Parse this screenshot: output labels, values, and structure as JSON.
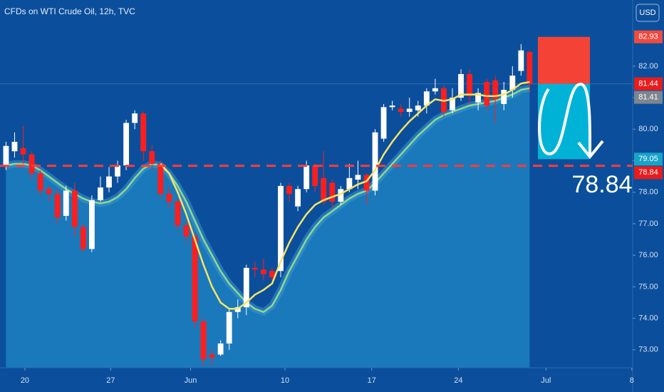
{
  "chart_data": {
    "type": "candlestick",
    "title": "CFDs on WTI Crude Oil, 12h, TVC",
    "currency": "USD",
    "open": [
      78.86,
      79.3,
      79.4,
      79.2,
      78.6,
      78.1,
      77.95,
      77.25,
      78.05,
      76.9,
      76.2,
      77.75,
      78.15,
      78.5,
      78.85,
      80.2,
      80.5,
      79.3,
      78.9,
      77.95,
      77.7,
      76.95,
      76.6,
      73.9,
      72.85,
      72.85,
      73.2,
      74.2,
      74.35,
      75.6,
      75.55,
      75.5,
      75.5,
      78.2,
      77.55,
      78.1,
      78.85,
      78.45,
      78.3,
      77.7,
      78.1,
      78.4,
      78.55,
      78.05,
      79.7,
      80.7,
      80.65,
      80.55,
      80.6,
      80.75,
      81.2,
      81.3,
      80.6,
      81.0,
      81.75,
      80.85,
      81.5,
      81.55,
      80.8,
      81.25,
      81.85,
      82.45
    ],
    "high": [
      79.6,
      79.9,
      80.1,
      79.3,
      78.7,
      78.2,
      78.1,
      78.2,
      78.3,
      77.0,
      77.9,
      78.5,
      78.8,
      79.0,
      80.3,
      80.6,
      80.55,
      79.5,
      79.0,
      78.2,
      77.8,
      77.1,
      76.7,
      74.0,
      73.0,
      73.3,
      74.3,
      74.6,
      75.7,
      75.8,
      75.9,
      75.6,
      78.3,
      78.3,
      78.2,
      79.0,
      78.9,
      79.3,
      78.4,
      78.2,
      78.9,
      79.0,
      78.6,
      80.0,
      80.8,
      80.9,
      80.8,
      81.0,
      80.9,
      81.3,
      81.6,
      81.4,
      81.3,
      81.9,
      81.9,
      81.3,
      81.6,
      81.7,
      81.5,
      82.0,
      82.7,
      82.5
    ],
    "low": [
      78.7,
      79.1,
      78.9,
      78.4,
      77.9,
      77.7,
      77.0,
      77.1,
      76.6,
      76.1,
      76.1,
      77.7,
      78.0,
      78.3,
      78.7,
      80.0,
      79.0,
      78.7,
      77.8,
      77.5,
      76.8,
      76.4,
      73.7,
      72.5,
      72.5,
      72.8,
      73.0,
      74.0,
      74.1,
      75.3,
      75.2,
      75.2,
      75.3,
      77.7,
      77.4,
      78.0,
      78.0,
      77.6,
      77.5,
      77.6,
      78.0,
      78.1,
      77.6,
      77.9,
      79.6,
      80.6,
      80.4,
      80.4,
      80.4,
      80.5,
      81.1,
      80.4,
      80.5,
      80.9,
      80.8,
      80.6,
      80.6,
      80.2,
      80.6,
      81.0,
      81.7,
      81.2
    ],
    "close": [
      79.47,
      79.6,
      79.2,
      78.6,
      78.05,
      77.95,
      77.2,
      78.05,
      76.9,
      76.2,
      77.75,
      78.15,
      78.5,
      78.85,
      80.2,
      80.5,
      79.3,
      78.9,
      77.95,
      77.7,
      76.95,
      76.6,
      73.9,
      72.7,
      72.75,
      73.2,
      74.2,
      74.35,
      75.6,
      75.55,
      75.4,
      75.3,
      78.2,
      77.95,
      78.1,
      78.85,
      78.2,
      77.7,
      77.7,
      78.1,
      78.45,
      78.55,
      78.05,
      79.9,
      80.7,
      80.75,
      80.55,
      80.65,
      80.75,
      81.2,
      81.3,
      80.55,
      81.0,
      81.75,
      81.05,
      81.15,
      80.75,
      80.95,
      81.25,
      81.7,
      82.5,
      81.44
    ],
    "up_color": "#ffffff",
    "down_color": "#ff1e1e",
    "series": [
      {
        "color": "#8fd98a",
        "values": [
          78.85,
          78.9,
          78.9,
          78.85,
          78.7,
          78.5,
          78.3,
          78.1,
          77.95,
          77.8,
          77.7,
          77.65,
          77.7,
          77.85,
          78.1,
          78.45,
          78.75,
          78.9,
          78.85,
          78.6,
          78.2,
          77.7,
          77.1,
          76.5,
          76.0,
          75.5,
          75.1,
          74.8,
          74.5,
          74.3,
          74.2,
          74.4,
          74.9,
          75.5,
          76.0,
          76.5,
          76.9,
          77.2,
          77.4,
          77.6,
          77.8,
          77.95,
          78.05,
          78.3,
          78.6,
          78.9,
          79.2,
          79.5,
          79.8,
          80.05,
          80.3,
          80.45,
          80.55,
          80.65,
          80.75,
          80.8,
          80.85,
          80.9,
          81.0,
          81.1,
          81.25,
          81.3
        ]
      },
      {
        "color": "#f7e463",
        "values": [
          null,
          null,
          null,
          null,
          null,
          null,
          null,
          null,
          null,
          null,
          null,
          null,
          null,
          null,
          null,
          null,
          null,
          null,
          78.9,
          78.6,
          78.0,
          77.3,
          76.5,
          75.7,
          75.0,
          74.5,
          74.3,
          74.3,
          74.5,
          74.75,
          74.9,
          75.1,
          75.8,
          76.4,
          76.9,
          77.3,
          77.6,
          77.75,
          77.85,
          77.95,
          78.1,
          78.25,
          78.35,
          78.7,
          79.2,
          79.6,
          79.95,
          80.25,
          80.5,
          80.75,
          80.95,
          80.9,
          80.95,
          81.1,
          81.1,
          81.1,
          81.05,
          81.05,
          81.1,
          81.25,
          81.45,
          81.5
        ]
      }
    ],
    "xlim": [
      -0.7,
      73
    ],
    "xticks": [
      {
        "value": 2.2,
        "label": "20"
      },
      {
        "value": 12.2,
        "label": "27"
      },
      {
        "value": 21.5,
        "label": "Jun"
      },
      {
        "value": 32.5,
        "label": "10"
      },
      {
        "value": 42.6,
        "label": "17"
      },
      {
        "value": 52.7,
        "label": "24"
      },
      {
        "value": 62.9,
        "label": "Jul"
      },
      {
        "value": 72.9,
        "label": "8"
      }
    ],
    "ylim": [
      72.43,
      84.1
    ],
    "yticks": [
      {
        "value": 73,
        "label": "73.00"
      },
      {
        "value": 74,
        "label": "74.00"
      },
      {
        "value": 75,
        "label": "75.00"
      },
      {
        "value": 76,
        "label": "76.00"
      },
      {
        "value": 77,
        "label": "77.00"
      },
      {
        "value": 78,
        "label": "78.00"
      },
      {
        "value": 79,
        "label": "79.00"
      },
      {
        "value": 80,
        "label": "80.00"
      },
      {
        "value": 81,
        "label": "81.00"
      },
      {
        "value": 82,
        "label": "82.00"
      }
    ],
    "price_labels": [
      {
        "value": 82.93,
        "label": "82.93",
        "color": "#f04a3e"
      },
      {
        "value": 81.44,
        "label": "81.44",
        "color": "#e91c1c"
      },
      {
        "value": 81.41,
        "label": "81.41",
        "color": "#7d8590"
      },
      {
        "value": 79.05,
        "label": "79.05",
        "color": "#1aa3c8"
      },
      {
        "value": 78.84,
        "label": "78.84",
        "color": "#e91c1c"
      }
    ],
    "position": {
      "stop": 82.93,
      "entry": 81.44,
      "target": 79.05,
      "stop_color": "#f44336",
      "target_color": "#00b3d6"
    },
    "level": {
      "value": 78.84,
      "color": "#ff3b3b"
    },
    "annotation": "78.84"
  }
}
